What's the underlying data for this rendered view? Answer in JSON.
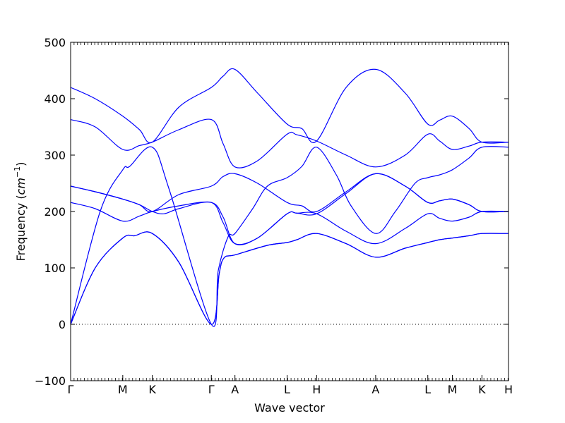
{
  "chart_data": {
    "type": "line",
    "title": "",
    "xlabel": "Wave vector",
    "ylabel_text": "Frequency (",
    "ylabel_unit_base": "cm",
    "ylabel_unit_exp": "−1",
    "ylabel_close": ")",
    "ylim": [
      -100,
      500
    ],
    "yticks": [
      -100,
      0,
      100,
      200,
      300,
      400,
      500
    ],
    "xlim": [
      0,
      4.45
    ],
    "xticks": [
      {
        "label": "Γ",
        "x": 0.0
      },
      {
        "label": "M",
        "x": 0.53
      },
      {
        "label": "K",
        "x": 0.83
      },
      {
        "label": "Γ",
        "x": 1.43
      },
      {
        "label": "A",
        "x": 1.67
      },
      {
        "label": "L",
        "x": 2.2
      },
      {
        "label": "H",
        "x": 2.5
      },
      {
        "label": "A",
        "x": 3.1
      },
      {
        "label": "L",
        "x": 3.63
      },
      {
        "label": "M",
        "x": 3.88
      },
      {
        "label": "K",
        "x": 4.18
      },
      {
        "label": "H",
        "x": 4.45
      }
    ],
    "zero_line": {
      "y": 0,
      "style": "dotted"
    },
    "line_color": "#0000ff",
    "grid": false,
    "legend": "none",
    "series": [
      {
        "points": [
          [
            0,
            0
          ],
          [
            0.25,
            100
          ],
          [
            0.53,
            153
          ],
          [
            0.65,
            157
          ],
          [
            0.83,
            161
          ],
          [
            1.1,
            110
          ],
          [
            1.43,
            0
          ],
          [
            1.51,
            90
          ],
          [
            1.56,
            118
          ],
          [
            1.67,
            123
          ],
          [
            2.0,
            140
          ],
          [
            2.2,
            145
          ],
          [
            2.3,
            150
          ],
          [
            2.5,
            161
          ],
          [
            2.8,
            143
          ],
          [
            3.1,
            119
          ],
          [
            3.4,
            135
          ],
          [
            3.63,
            145
          ],
          [
            3.75,
            150
          ],
          [
            3.88,
            153
          ],
          [
            4.05,
            157
          ],
          [
            4.18,
            161
          ],
          [
            4.45,
            161
          ]
        ]
      },
      {
        "points": [
          [
            0,
            0
          ],
          [
            0.25,
            100
          ],
          [
            0.53,
            153
          ],
          [
            0.65,
            157
          ],
          [
            0.83,
            161
          ],
          [
            1.1,
            110
          ],
          [
            1.43,
            0
          ],
          [
            1.51,
            90
          ],
          [
            1.56,
            118
          ],
          [
            1.67,
            123
          ],
          [
            2.0,
            140
          ],
          [
            2.2,
            145
          ],
          [
            2.3,
            150
          ],
          [
            2.5,
            161
          ],
          [
            2.8,
            143
          ],
          [
            3.1,
            119
          ],
          [
            3.4,
            135
          ],
          [
            3.63,
            145
          ],
          [
            3.75,
            150
          ],
          [
            3.88,
            153
          ],
          [
            4.05,
            157
          ],
          [
            4.18,
            161
          ],
          [
            4.45,
            161
          ]
        ]
      },
      {
        "points": [
          [
            0,
            0
          ],
          [
            0.3,
            200
          ],
          [
            0.53,
            274
          ],
          [
            0.6,
            280
          ],
          [
            0.83,
            314
          ],
          [
            1.0,
            240
          ],
          [
            1.43,
            0
          ],
          [
            1.5,
            95
          ],
          [
            1.6,
            155
          ],
          [
            1.67,
            161
          ],
          [
            1.85,
            205
          ],
          [
            2.0,
            245
          ],
          [
            2.2,
            260
          ],
          [
            2.35,
            280
          ],
          [
            2.5,
            314
          ],
          [
            2.7,
            265
          ],
          [
            2.85,
            210
          ],
          [
            3.1,
            161
          ],
          [
            3.3,
            200
          ],
          [
            3.5,
            250
          ],
          [
            3.63,
            260
          ],
          [
            3.75,
            265
          ],
          [
            3.88,
            274
          ],
          [
            4.05,
            295
          ],
          [
            4.18,
            314
          ],
          [
            4.45,
            314
          ]
        ]
      },
      {
        "points": [
          [
            0,
            216
          ],
          [
            0.25,
            205
          ],
          [
            0.53,
            183
          ],
          [
            0.7,
            192
          ],
          [
            0.83,
            200
          ],
          [
            1.1,
            210
          ],
          [
            1.43,
            216
          ],
          [
            1.55,
            190
          ],
          [
            1.67,
            143
          ],
          [
            1.9,
            153
          ],
          [
            2.2,
            196
          ],
          [
            2.3,
            197
          ],
          [
            2.5,
            196
          ],
          [
            2.8,
            165
          ],
          [
            3.1,
            143
          ],
          [
            3.4,
            170
          ],
          [
            3.63,
            196
          ],
          [
            3.75,
            188
          ],
          [
            3.88,
            183
          ],
          [
            4.05,
            190
          ],
          [
            4.18,
            200
          ],
          [
            4.45,
            200
          ]
        ]
      },
      {
        "points": [
          [
            0,
            245
          ],
          [
            0.25,
            235
          ],
          [
            0.53,
            222
          ],
          [
            0.7,
            212
          ],
          [
            0.83,
            200
          ],
          [
            0.95,
            196
          ],
          [
            1.1,
            205
          ],
          [
            1.43,
            216
          ],
          [
            1.55,
            180
          ],
          [
            1.67,
            143
          ],
          [
            1.9,
            153
          ],
          [
            2.2,
            196
          ],
          [
            2.3,
            197
          ],
          [
            2.5,
            196
          ],
          [
            2.8,
            232
          ],
          [
            3.1,
            267
          ],
          [
            3.4,
            245
          ],
          [
            3.63,
            216
          ],
          [
            3.75,
            219
          ],
          [
            3.88,
            222
          ],
          [
            4.05,
            212
          ],
          [
            4.18,
            200
          ],
          [
            4.45,
            200
          ]
        ]
      },
      {
        "points": [
          [
            0,
            245
          ],
          [
            0.25,
            235
          ],
          [
            0.53,
            222
          ],
          [
            0.7,
            212
          ],
          [
            0.83,
            200
          ],
          [
            1.1,
            230
          ],
          [
            1.43,
            245
          ],
          [
            1.55,
            262
          ],
          [
            1.67,
            267
          ],
          [
            1.9,
            250
          ],
          [
            2.2,
            216
          ],
          [
            2.35,
            210
          ],
          [
            2.5,
            200
          ],
          [
            2.8,
            235
          ],
          [
            3.1,
            267
          ],
          [
            3.4,
            245
          ],
          [
            3.63,
            216
          ],
          [
            3.75,
            219
          ],
          [
            3.88,
            222
          ],
          [
            4.05,
            212
          ],
          [
            4.18,
            200
          ],
          [
            4.45,
            200
          ]
        ]
      },
      {
        "points": [
          [
            0,
            363
          ],
          [
            0.25,
            350
          ],
          [
            0.53,
            310
          ],
          [
            0.7,
            317
          ],
          [
            0.83,
            323
          ],
          [
            1.1,
            345
          ],
          [
            1.43,
            363
          ],
          [
            1.55,
            320
          ],
          [
            1.67,
            279
          ],
          [
            1.9,
            290
          ],
          [
            2.2,
            337
          ],
          [
            2.3,
            336
          ],
          [
            2.5,
            325
          ],
          [
            2.8,
            300
          ],
          [
            3.1,
            279
          ],
          [
            3.4,
            300
          ],
          [
            3.63,
            337
          ],
          [
            3.75,
            325
          ],
          [
            3.88,
            310
          ],
          [
            4.05,
            316
          ],
          [
            4.18,
            323
          ],
          [
            4.45,
            323
          ]
        ]
      },
      {
        "points": [
          [
            0,
            420
          ],
          [
            0.25,
            400
          ],
          [
            0.53,
            369
          ],
          [
            0.7,
            345
          ],
          [
            0.83,
            323
          ],
          [
            1.1,
            385
          ],
          [
            1.43,
            420
          ],
          [
            1.55,
            440
          ],
          [
            1.67,
            452
          ],
          [
            1.9,
            410
          ],
          [
            2.2,
            355
          ],
          [
            2.35,
            347
          ],
          [
            2.5,
            325
          ],
          [
            2.8,
            420
          ],
          [
            3.1,
            452
          ],
          [
            3.4,
            410
          ],
          [
            3.63,
            355
          ],
          [
            3.75,
            362
          ],
          [
            3.88,
            369
          ],
          [
            4.05,
            347
          ],
          [
            4.18,
            323
          ],
          [
            4.45,
            323
          ]
        ]
      }
    ]
  }
}
